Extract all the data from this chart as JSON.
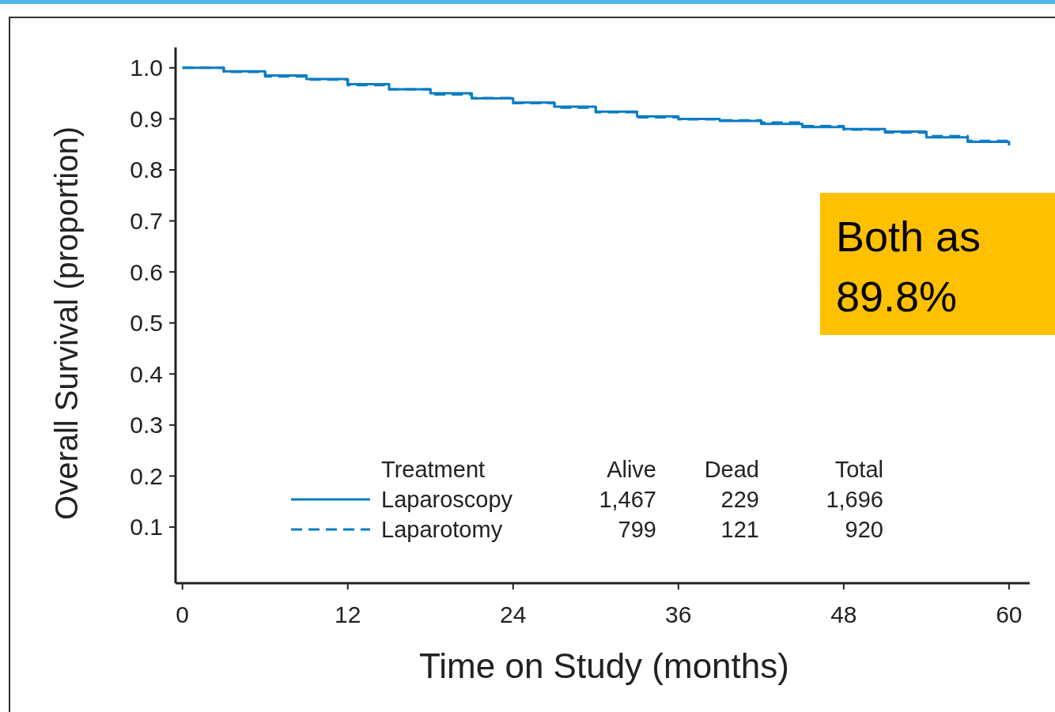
{
  "chart_data": {
    "type": "step",
    "xlabel": "Time on Study (months)",
    "ylabel": "Overall Survival (proportion)",
    "legend_title": "Treatment",
    "x": [
      0,
      3,
      6,
      9,
      12,
      15,
      18,
      21,
      24,
      27,
      30,
      33,
      36,
      39,
      42,
      45,
      48,
      51,
      54,
      57,
      60
    ],
    "series": [
      {
        "name": "Laparoscopy",
        "color": "#0a7cc4",
        "line_style": "solid",
        "values": [
          1.0,
          0.993,
          0.985,
          0.978,
          0.968,
          0.958,
          0.95,
          0.94,
          0.932,
          0.924,
          0.914,
          0.905,
          0.9,
          0.896,
          0.89,
          0.884,
          0.88,
          0.875,
          0.864,
          0.855,
          0.848
        ]
      },
      {
        "name": "Laparotomy",
        "color": "#0a7cc4",
        "line_style": "dashed",
        "values": [
          1.0,
          0.992,
          0.983,
          0.977,
          0.966,
          0.958,
          0.948,
          0.941,
          0.931,
          0.922,
          0.913,
          0.903,
          0.899,
          0.897,
          0.893,
          0.886,
          0.879,
          0.873,
          0.866,
          0.857,
          0.849
        ]
      }
    ],
    "xlim": [
      -0.5,
      61.5
    ],
    "xticks": [
      0,
      12,
      24,
      36,
      48,
      60
    ],
    "ylim": [
      -0.01,
      1.04
    ],
    "yticks": [
      {
        "value": 0.1,
        "label": "0.1"
      },
      {
        "value": 0.2,
        "label": "0.2"
      },
      {
        "value": 0.3,
        "label": "0.3"
      },
      {
        "value": 0.4,
        "label": "0.4"
      },
      {
        "value": 0.5,
        "label": "0.5"
      },
      {
        "value": 0.6,
        "label": "0.6"
      },
      {
        "value": 0.7,
        "label": "0.7"
      },
      {
        "value": 0.8,
        "label": "0.8"
      },
      {
        "value": 0.9,
        "label": "0.9"
      },
      {
        "value": 1.0,
        "label": "1.0"
      }
    ],
    "legend": "bottom",
    "annotations": [
      "Alive",
      "Dead",
      "Total",
      "1,467",
      "229",
      "1,696",
      "799",
      "121",
      "920",
      "Both as 89.8%"
    ]
  }
}
